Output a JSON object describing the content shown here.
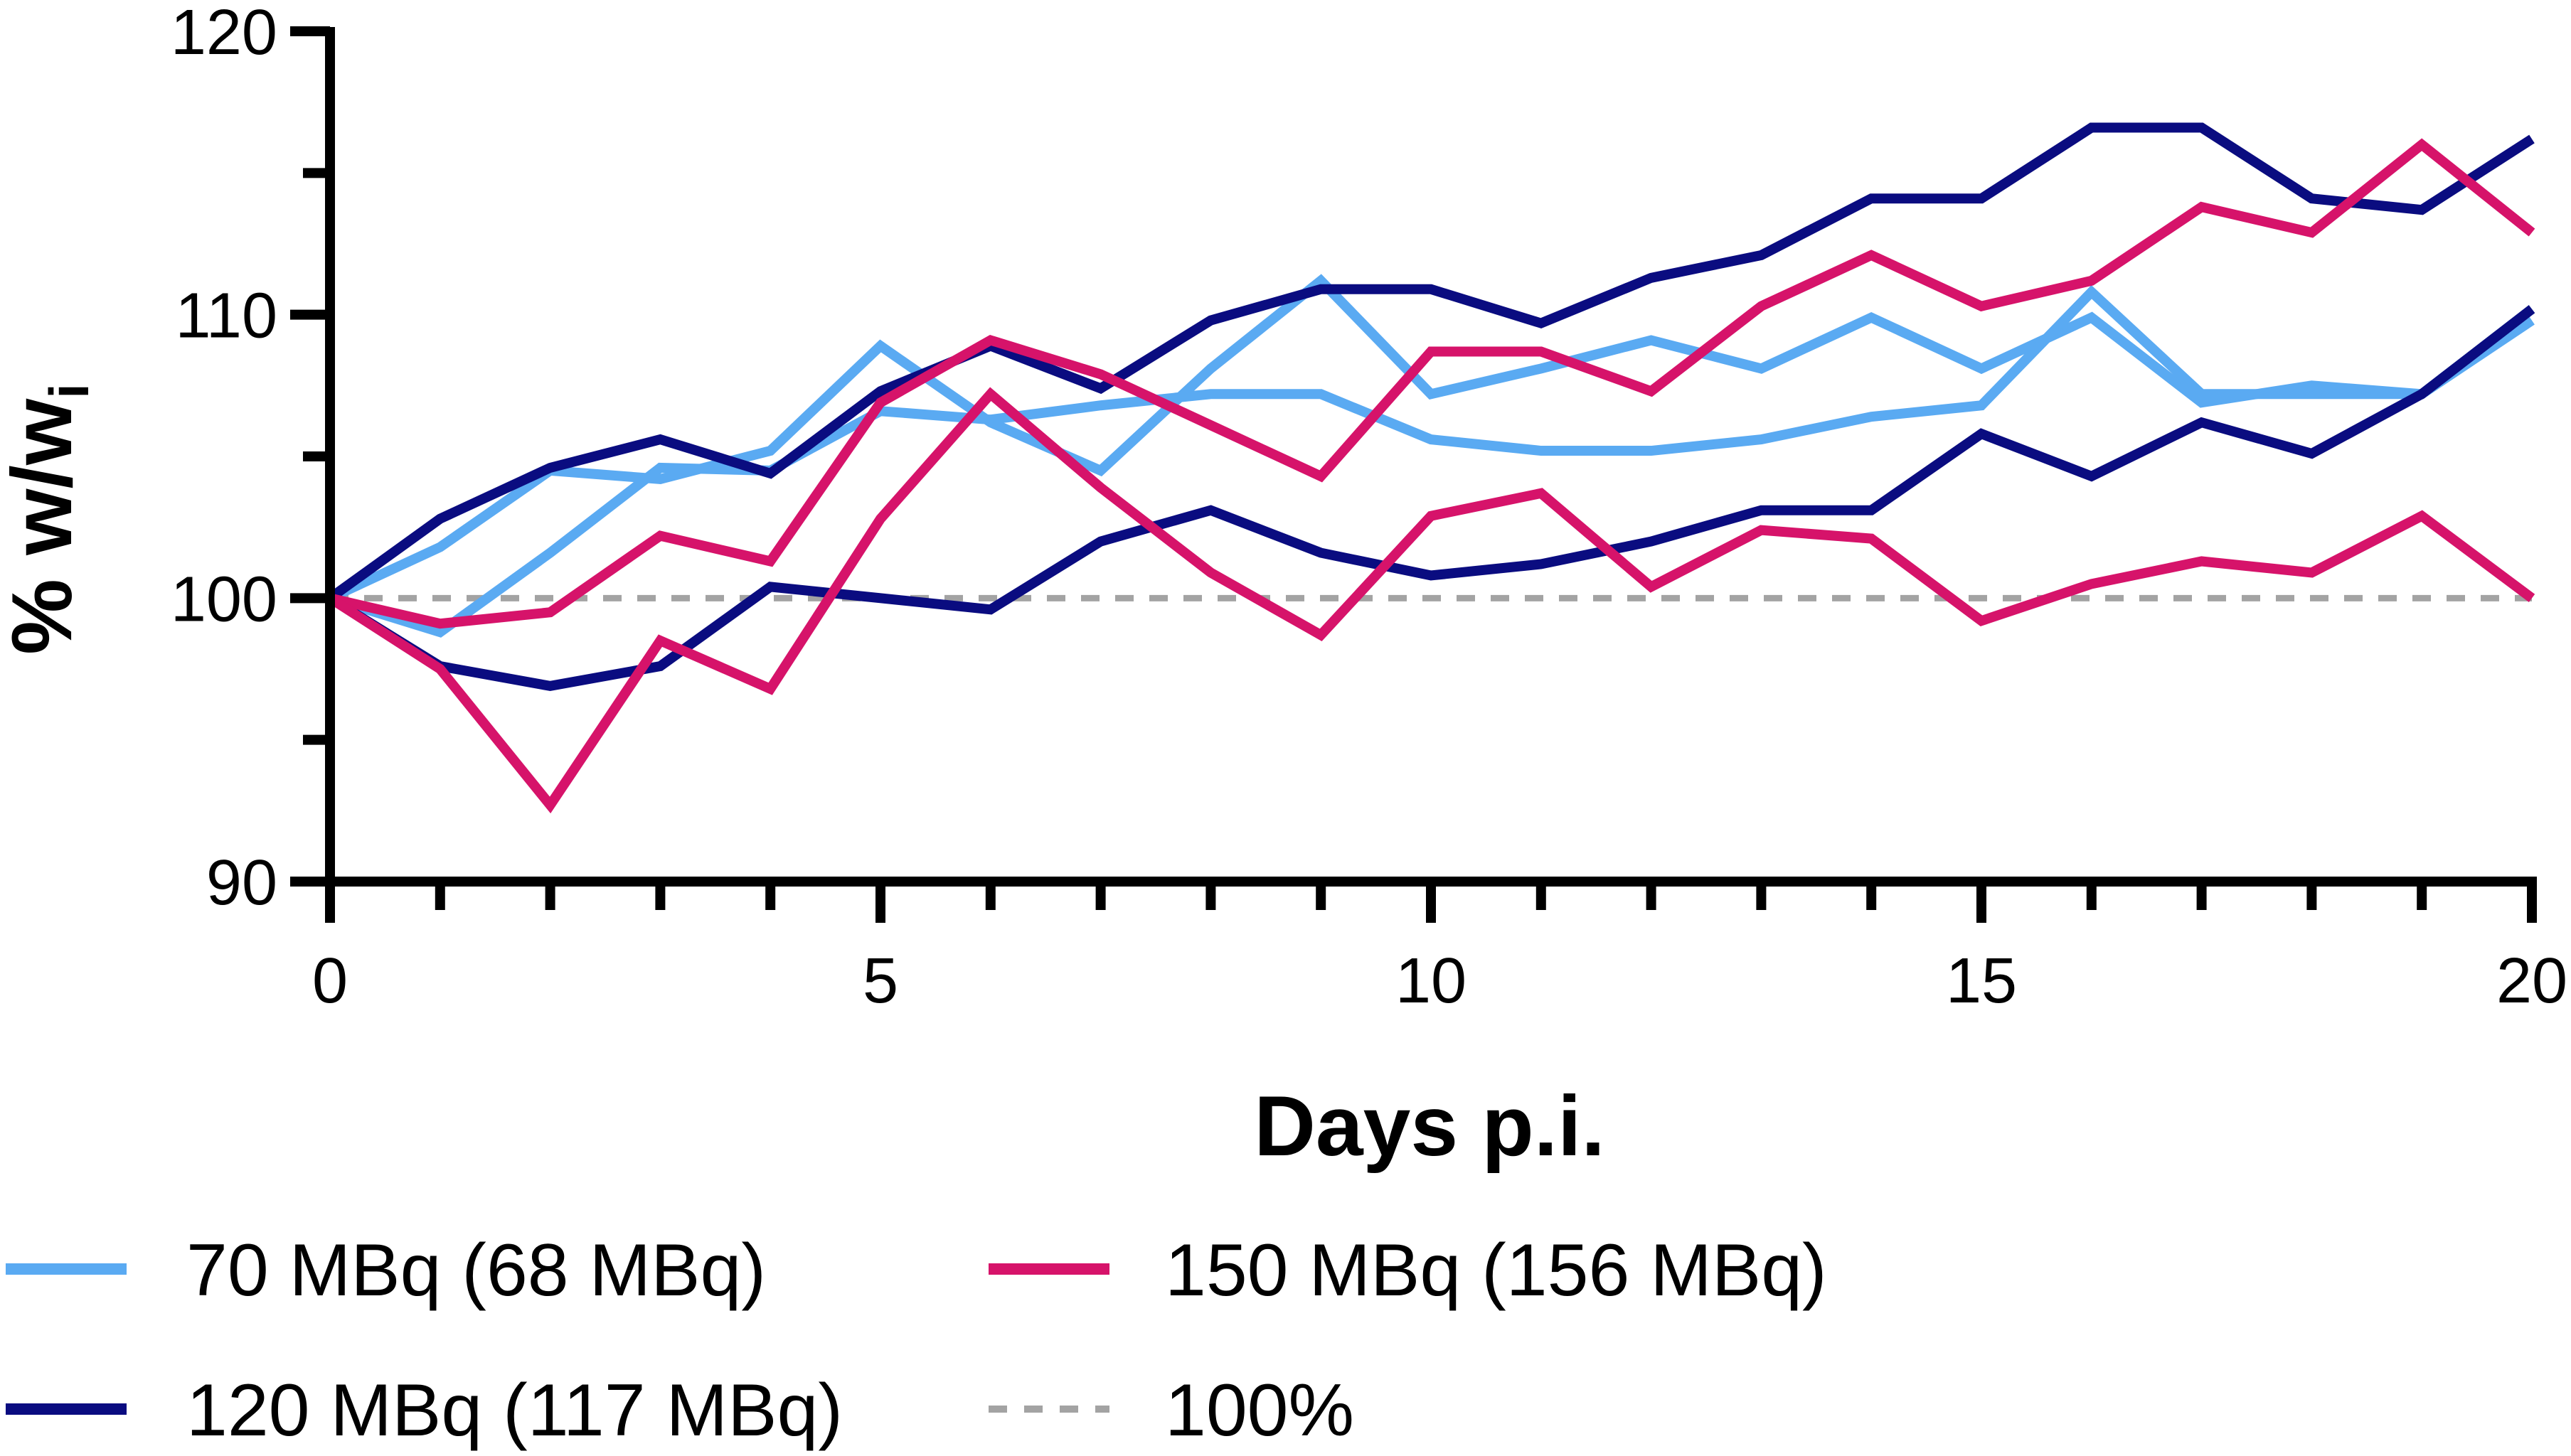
{
  "chart_data": {
    "type": "line",
    "title": "",
    "xlabel": "Days p.i.",
    "ylabel": "% w/w",
    "ylabel_subscript": "i",
    "xlim": [
      0,
      20
    ],
    "ylim": [
      90,
      120
    ],
    "x_ticks": [
      "0",
      "5",
      "10",
      "15",
      "20"
    ],
    "x_tick_values": [
      0,
      5,
      10,
      15,
      20
    ],
    "y_ticks": [
      "90",
      "100",
      "110",
      "120"
    ],
    "y_tick_values": [
      90,
      100,
      110,
      120
    ],
    "x": [
      0,
      1,
      2,
      3,
      4,
      5,
      6,
      7,
      8,
      9,
      10,
      11,
      12,
      13,
      14,
      15,
      16,
      17,
      18,
      19,
      20
    ],
    "series": [
      {
        "name": "70 MBq (68 MBq)",
        "color": "#5AAAF2",
        "dash": false,
        "values": [
          100,
          101.8,
          104.5,
          104.2,
          105.2,
          108.9,
          106.2,
          104.5,
          108.1,
          111.2,
          107.2,
          108.1,
          109.1,
          108.1,
          109.9,
          108.1,
          109.9,
          106.9,
          107.5,
          107.2,
          110.2
        ]
      },
      {
        "name": "70 MBq (68 MBq)",
        "color": "#5AAAF2",
        "dash": false,
        "values": [
          100,
          98.8,
          101.6,
          104.6,
          104.5,
          106.6,
          106.3,
          106.8,
          107.2,
          107.2,
          105.6,
          105.2,
          105.2,
          105.6,
          106.4,
          106.8,
          110.8,
          107.2,
          107.2,
          107.2,
          109.8
        ]
      },
      {
        "name": "120 MBq (117 MBq)",
        "color": "#0A0C80",
        "dash": false,
        "values": [
          100,
          102.8,
          104.6,
          105.6,
          104.4,
          107.3,
          108.9,
          107.4,
          109.8,
          110.9,
          110.9,
          109.7,
          111.3,
          112.1,
          114.1,
          114.1,
          116.6,
          116.6,
          114.1,
          113.7,
          116.2
        ]
      },
      {
        "name": "120 MBq (117 MBq)",
        "color": "#0A0C80",
        "dash": false,
        "values": [
          100,
          97.6,
          96.9,
          97.6,
          100.4,
          100.0,
          99.6,
          102.0,
          103.1,
          101.6,
          100.8,
          101.2,
          102.0,
          103.1,
          103.1,
          105.8,
          104.3,
          106.2,
          105.1,
          107.2,
          110.2
        ]
      },
      {
        "name": "150 MBq (156 MBq)",
        "color": "#D6136A",
        "dash": false,
        "values": [
          100,
          99.1,
          99.5,
          102.2,
          101.3,
          106.9,
          109.1,
          107.9,
          106.1,
          104.3,
          108.7,
          108.7,
          107.3,
          110.3,
          112.1,
          110.3,
          111.2,
          113.8,
          112.9,
          116.0,
          112.9
        ]
      },
      {
        "name": "150 MBq (156 MBq)",
        "color": "#D6136A",
        "dash": false,
        "values": [
          100,
          97.5,
          92.7,
          98.5,
          96.8,
          102.8,
          107.2,
          103.9,
          100.9,
          98.7,
          102.9,
          103.7,
          100.4,
          102.4,
          102.1,
          99.2,
          100.5,
          101.3,
          100.9,
          102.9,
          100.0
        ]
      },
      {
        "name": "100%",
        "color": "#A3A3A3",
        "dash": true,
        "values": [
          100,
          100,
          100,
          100,
          100,
          100,
          100,
          100,
          100,
          100,
          100,
          100,
          100,
          100,
          100,
          100,
          100,
          100,
          100,
          100,
          100
        ]
      }
    ],
    "legend": [
      {
        "label": "70 MBq (68 MBq)",
        "color": "#5AAAF2",
        "dash": false
      },
      {
        "label": "150 MBq (156 MBq)",
        "color": "#D6136A",
        "dash": false
      },
      {
        "label": "120 MBq (117 MBq)",
        "color": "#0A0C80",
        "dash": false
      },
      {
        "label": "100%",
        "color": "#A3A3A3",
        "dash": true
      }
    ],
    "legend_position": "bottom",
    "grid": false
  }
}
